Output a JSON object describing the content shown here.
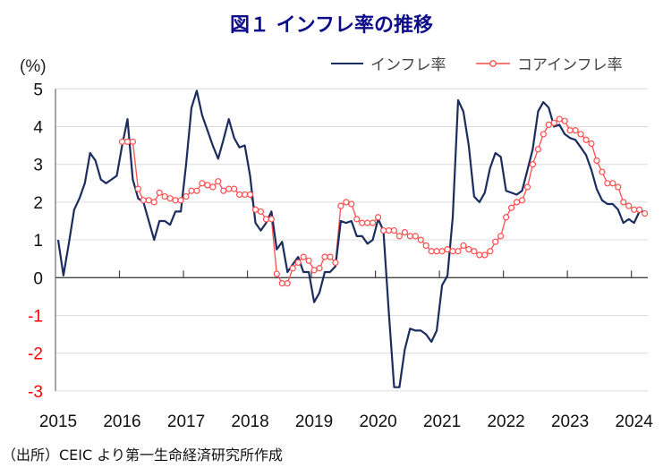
{
  "chart_data": {
    "type": "line",
    "title": "図１ インフレ率の推移",
    "ylabel": "(%)",
    "xlabel": "",
    "ylim": [
      -3,
      5
    ],
    "yticks": [
      "5",
      "4",
      "3",
      "2",
      "1",
      "0",
      "-1",
      "-2",
      "-3"
    ],
    "x_tick_labels": [
      "2015",
      "2016",
      "2017",
      "2018",
      "2019",
      "2020",
      "2021",
      "2022",
      "2023",
      "2024"
    ],
    "x_start": "2015-01",
    "x_frequency": "monthly",
    "grid": true,
    "legend_position": "top-right",
    "colors": {
      "inflation": "#1a2d5e",
      "core": "#ff4d4d",
      "negative_tick": "#ff0000",
      "title": "#0d0d8a"
    },
    "series": [
      {
        "name": "インフレ率",
        "start": "2015-01",
        "values": [
          1.0,
          0.06,
          0.9,
          1.8,
          2.1,
          2.5,
          3.3,
          3.1,
          2.6,
          2.5,
          2.6,
          2.7,
          3.5,
          4.2,
          2.6,
          2.1,
          2.0,
          1.5,
          1.0,
          1.5,
          1.5,
          1.4,
          1.75,
          1.75,
          3.0,
          4.5,
          4.95,
          4.3,
          3.9,
          3.5,
          3.15,
          3.65,
          4.2,
          3.7,
          3.45,
          3.5,
          2.7,
          1.45,
          1.25,
          1.45,
          1.75,
          0.75,
          0.95,
          0.15,
          0.35,
          0.55,
          0.15,
          0.15,
          -0.65,
          -0.4,
          0.15,
          0.15,
          0.3,
          1.5,
          1.45,
          1.5,
          1.1,
          1.1,
          0.9,
          1.0,
          1.55,
          1.25,
          -0.9,
          -2.9,
          -2.9,
          -1.9,
          -1.35,
          -1.4,
          -1.4,
          -1.5,
          -1.7,
          -1.4,
          -0.2,
          0.05,
          1.6,
          4.7,
          4.4,
          3.5,
          2.15,
          2.0,
          2.25,
          2.9,
          3.3,
          3.2,
          2.3,
          2.25,
          2.2,
          2.3,
          2.85,
          3.4,
          4.4,
          4.65,
          4.5,
          4.0,
          4.05,
          3.8,
          3.7,
          3.65,
          3.45,
          3.25,
          2.85,
          2.35,
          2.05,
          1.95,
          1.95,
          1.8,
          1.45,
          1.55,
          1.45,
          1.75,
          1.75
        ]
      },
      {
        "name": "コアインフレ率",
        "start": "2016-01",
        "values": [
          3.6,
          3.6,
          3.6,
          2.35,
          2.05,
          2.05,
          2.0,
          2.25,
          2.15,
          2.1,
          2.05,
          2.05,
          2.15,
          2.3,
          2.3,
          2.5,
          2.45,
          2.4,
          2.55,
          2.3,
          2.35,
          2.35,
          2.2,
          2.2,
          2.2,
          1.8,
          1.75,
          1.55,
          1.55,
          0.1,
          -0.15,
          -0.15,
          0.25,
          0.4,
          0.55,
          0.45,
          0.2,
          0.25,
          0.55,
          0.55,
          0.4,
          1.9,
          2.0,
          1.95,
          1.55,
          1.45,
          1.45,
          1.45,
          1.6,
          1.25,
          1.25,
          1.25,
          1.1,
          1.2,
          1.1,
          1.1,
          1.0,
          0.85,
          0.7,
          0.7,
          0.7,
          0.75,
          0.7,
          0.7,
          0.85,
          0.75,
          0.7,
          0.6,
          0.6,
          0.7,
          0.95,
          1.1,
          1.6,
          1.85,
          2.0,
          2.05,
          2.4,
          3.0,
          3.4,
          3.8,
          4.05,
          4.1,
          4.2,
          4.15,
          3.9,
          3.9,
          3.8,
          3.65,
          3.55,
          3.1,
          2.8,
          2.5,
          2.5,
          2.4,
          2.0,
          1.9,
          1.8,
          1.8,
          1.7
        ]
      }
    ],
    "source_note": "（出所）CEIC より第一生命経済研究所作成"
  }
}
